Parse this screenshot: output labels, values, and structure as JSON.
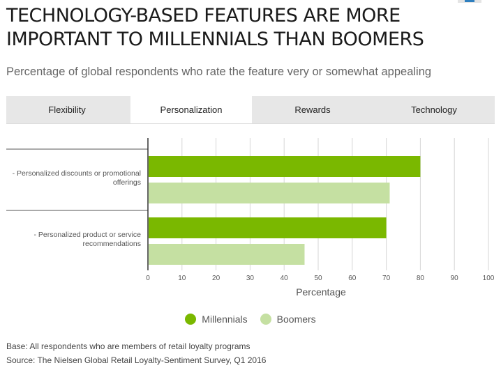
{
  "title": "TECHNOLOGY-BASED FEATURES ARE MORE IMPORTANT TO MILLENNIALS THAN BOOMERS",
  "subtitle": "Percentage of global respondents who rate the feature very or somewhat appealing",
  "tabs": [
    {
      "label": "Flexibility"
    },
    {
      "label": "Personalization"
    },
    {
      "label": "Rewards"
    },
    {
      "label": "Technology"
    }
  ],
  "active_tab": "Personalization",
  "legend": [
    {
      "label": "Millennials",
      "color": "#7ab800"
    },
    {
      "label": "Boomers",
      "color": "#c5e0a2"
    }
  ],
  "footnote": {
    "base": "Base: All respondents who are members of retail loyalty programs",
    "source": "Source: The Nielsen Global Retail Loyalty-Sentiment Survey, Q1 2016"
  },
  "chart_data": {
    "type": "bar",
    "orientation": "horizontal",
    "categories": [
      [
        "- Personalized discounts or promotional",
        "offerings"
      ],
      [
        "- Personalized product or service",
        "recommendations"
      ]
    ],
    "series": [
      {
        "name": "Millennials",
        "color": "#7ab800",
        "values": [
          80,
          70
        ]
      },
      {
        "name": "Boomers",
        "color": "#c5e0a2",
        "values": [
          71,
          46
        ]
      }
    ],
    "xlabel": "Percentage",
    "ylabel": "",
    "xlim": [
      0,
      100
    ],
    "ticks": [
      0,
      10,
      20,
      30,
      40,
      50,
      60,
      70,
      80,
      90,
      100
    ],
    "grid": true,
    "legend_position": "bottom"
  }
}
